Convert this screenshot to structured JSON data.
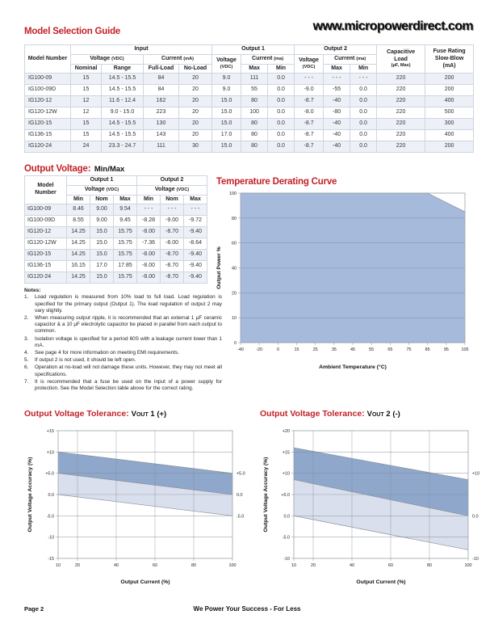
{
  "header": {
    "website": "www.micropowerdirect.com"
  },
  "titles": {
    "model_guide": "Model Selection Guide",
    "output_voltage": "Output Voltage:",
    "output_voltage_sub": "Min/Max",
    "derating": "Temperature Derating Curve",
    "tolerance1_red": "Output Voltage Tolerance:",
    "tolerance2_red": "Output Voltage Tolerance:",
    "tol_v": "V",
    "tol_sub": "OUT",
    "tol1_rest": "1 (+)",
    "tol2_rest": "2 (-)"
  },
  "colors": {
    "accent_red": "#c32127",
    "row_stripe": "#edf1f7",
    "table_border": "#ccd6e2",
    "band_dark": "#8ea7cb",
    "band_light": "#d9dfec",
    "area": "#a6badb",
    "grid": "#848b95",
    "border": "#9ba2ab",
    "edge": "#8a919b"
  },
  "model_table": {
    "header": {
      "model_number": "Model Number",
      "input": "Input",
      "output1": "Output 1",
      "output2": "Output 2",
      "voltage": "Voltage",
      "voltage_unit": "(VDC)",
      "current": "Current",
      "current_unit_in": "(mA)",
      "current_unit_out": "(ma)",
      "nominal": "Nominal",
      "range": "Range",
      "full_load": "Full-Load",
      "no_load": "No-Load",
      "max": "Max",
      "min": "Min",
      "cap_line1": "Capacitive",
      "cap_line2": "Load",
      "cap_line3": "(μF, Max)",
      "fuse_line1": "Fuse Rating",
      "fuse_line2": "Slow-Blow",
      "fuse_line3": "(mA)"
    },
    "rows": [
      [
        "IG100-09",
        "15",
        "14.5 - 15.5",
        "84",
        "20",
        "9.0",
        "111",
        "0.0",
        "- - -",
        "- - -",
        "- - -",
        "220",
        "200"
      ],
      [
        "IG100-09D",
        "15",
        "14.5 - 15.5",
        "84",
        "20",
        "9.0",
        "55",
        "0.0",
        "-9.0",
        "-55",
        "0.0",
        "220",
        "200"
      ],
      [
        "IG120-12",
        "12",
        "11.6 - 12.4",
        "162",
        "20",
        "15.0",
        "80",
        "0.0",
        "-8.7",
        "-40",
        "0.0",
        "220",
        "400"
      ],
      [
        "IG120-12W",
        "12",
        "9.0 - 15.0",
        "223",
        "20",
        "15.0",
        "100",
        "0.0",
        "-8.0",
        "-80",
        "0.0",
        "220",
        "500"
      ],
      [
        "IG120-15",
        "15",
        "14.5 - 15.5",
        "130",
        "20",
        "15.0",
        "80",
        "0.0",
        "-8.7",
        "-40",
        "0.0",
        "220",
        "300"
      ],
      [
        "IG136-15",
        "15",
        "14.5 - 15.5",
        "143",
        "20",
        "17.0",
        "80",
        "0.0",
        "-8.7",
        "-40",
        "0.0",
        "220",
        "400"
      ],
      [
        "IG120-24",
        "24",
        "23.3 - 24.7",
        "111",
        "30",
        "15.0",
        "80",
        "0.0",
        "-8.7",
        "-40",
        "0.0",
        "220",
        "200"
      ]
    ]
  },
  "ov_table": {
    "header": {
      "model_number": "Model Number",
      "output1": "Output 1",
      "output2": "Output 2",
      "voltage": "Voltage",
      "voltage_unit": "(VDC)",
      "min": "Min",
      "nom": "Nom",
      "max": "Max"
    },
    "rows": [
      [
        "IG100-09",
        "8.46",
        "9.00",
        "9.54",
        "- - -",
        "- - -",
        "- - -"
      ],
      [
        "IG100-09D",
        "8.55",
        "9.00",
        "9.45",
        "-8.28",
        "-9.00",
        "-9.72"
      ],
      [
        "IG120-12",
        "14.25",
        "15.0",
        "15.75",
        "-8.00",
        "-8.70",
        "-9.40"
      ],
      [
        "IG120-12W",
        "14.25",
        "15.0",
        "15.75",
        "-7.36",
        "-8.00",
        "-8.64"
      ],
      [
        "IG120-15",
        "14.25",
        "15.0",
        "15.75",
        "-8.00",
        "-8.70",
        "-9.40"
      ],
      [
        "IG136-15",
        "16.15",
        "17.0",
        "17.85",
        "-8.00",
        "-8.70",
        "-9.40"
      ],
      [
        "IG120-24",
        "14.25",
        "15.0",
        "15.75",
        "-8.00",
        "-8.70",
        "-9.40"
      ]
    ]
  },
  "notes": {
    "title": "Notes:",
    "items": [
      "Load regulation is measured from 10% load to full load. Load regulation is specified for the primary output (Output 1). The load regulation of output 2 may vary slightly.",
      "When measuring output ripple, it is recommended that an external 1 μF ceramic capacitor & a 10 μF electrolytic capacitor be placed in parallel from each output to common.",
      "Isolation voltage is specified for a period 60S with a leakage current lower than 1 mA.",
      "See page 4 for more information on meeting EMI requirements.",
      "If output 2 is not used, it should be left open.",
      "Operation at no-load will not damage these units. However, they may not meet all specifications.",
      "It is recommended that a fuse be used on the input of a power supply for protection. See the Model Selection table above for the correct rating."
    ]
  },
  "chart_data": {
    "derating": {
      "type": "area",
      "x_title": "Ambient Temperature (°C)",
      "y_title": "Output Power %",
      "x_scale": "ordinal",
      "y_scale": "ordinal",
      "x_ticks": [
        -40,
        -20,
        0,
        15,
        25,
        35,
        45,
        55,
        65,
        75,
        85,
        95,
        105
      ],
      "x_labels": [
        "-40",
        "-20",
        "0",
        "15",
        "25",
        "35",
        "45",
        "55",
        "65",
        "75",
        "85",
        "95",
        "105"
      ],
      "y_ticks": [
        0,
        10,
        20,
        40,
        60,
        80,
        100
      ],
      "y_labels": [
        "0",
        "10",
        "20",
        "40",
        "60",
        "80",
        "100"
      ],
      "v_grid": false,
      "bands": [
        {
          "upper": [
            [
              -40,
              100
            ],
            [
              85,
              100
            ],
            [
              105,
              85
            ]
          ],
          "lower": [
            [
              -40,
              0
            ],
            [
              105,
              0
            ]
          ],
          "color": "area"
        }
      ],
      "right_labels": []
    },
    "vout1": {
      "type": "area",
      "x_title": "Output Current (%)",
      "y_title": "Output Voltage Accuracy (%)",
      "x_scale": "linear",
      "y_scale": "linear",
      "x_ticks": [
        10,
        20,
        40,
        60,
        80,
        100
      ],
      "x_labels": [
        "10",
        "20",
        "40",
        "60",
        "80",
        "100"
      ],
      "y_ticks": [
        -15,
        -10,
        -5,
        0,
        5,
        10,
        15
      ],
      "y_labels": [
        "-15",
        "-10",
        "-5.0",
        "0.0",
        "+5.0",
        "+10",
        "+15"
      ],
      "v_grid": true,
      "bands": [
        {
          "upper": [
            [
              10,
              10
            ],
            [
              100,
              5
            ]
          ],
          "lower": [
            [
              10,
              5
            ],
            [
              100,
              0
            ]
          ],
          "color": "band_dark"
        },
        {
          "upper": [
            [
              10,
              5
            ],
            [
              100,
              0
            ]
          ],
          "lower": [
            [
              10,
              0
            ],
            [
              100,
              -5
            ]
          ],
          "color": "band_light"
        }
      ],
      "right_labels": [
        {
          "v": 5,
          "label": "+5.0"
        },
        {
          "v": 0,
          "label": "0.0"
        },
        {
          "v": -5,
          "label": "-5.0"
        }
      ]
    },
    "vout2": {
      "type": "area",
      "x_title": "Output Current (%)",
      "y_title": "Output Voltage Accuracy (%)",
      "x_scale": "linear",
      "y_scale": "linear",
      "x_ticks": [
        10,
        20,
        40,
        60,
        80,
        100
      ],
      "x_labels": [
        "10",
        "20",
        "40",
        "60",
        "80",
        "100"
      ],
      "y_ticks": [
        -10,
        -5,
        0,
        5,
        10,
        15,
        20
      ],
      "y_labels": [
        "-10",
        "-5.0",
        "0.0",
        "+5.0",
        "+10",
        "+15",
        "+20"
      ],
      "v_grid": true,
      "bands": [
        {
          "upper": [
            [
              10,
              16
            ],
            [
              100,
              8.5
            ]
          ],
          "lower": [
            [
              10,
              8.5
            ],
            [
              100,
              0
            ]
          ],
          "color": "band_dark"
        },
        {
          "upper": [
            [
              10,
              8.5
            ],
            [
              100,
              0
            ]
          ],
          "lower": [
            [
              10,
              0
            ],
            [
              100,
              -8
            ]
          ],
          "color": "band_light"
        }
      ],
      "right_labels": [
        {
          "v": 10,
          "label": "+10"
        },
        {
          "v": 0,
          "label": "0.0"
        },
        {
          "v": -10,
          "label": "-10"
        }
      ]
    }
  },
  "footer": {
    "page": "Page 2",
    "tagline": "We Power Your Success - For Less"
  }
}
